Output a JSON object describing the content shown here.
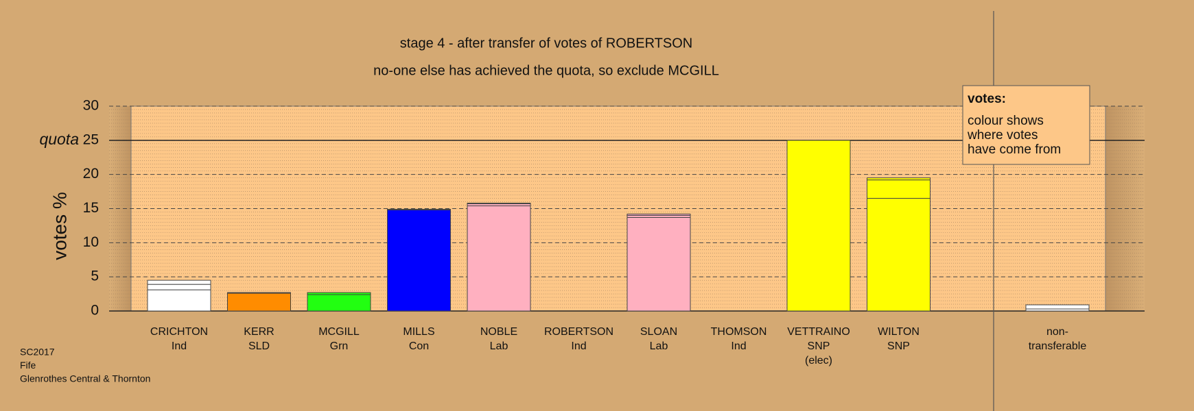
{
  "chart_data": {
    "type": "stacked_bar",
    "title": "stage 4 - after transfer of votes of ROBERTSON",
    "subtitle": "no-one else has achieved the quota, so exclude MCGILL",
    "ylabel": "votes %",
    "ylim": [
      0,
      30
    ],
    "yticks": [
      0,
      5,
      10,
      15,
      20,
      25,
      30
    ],
    "grid": true,
    "quota": {
      "value": 25,
      "label": "quota"
    },
    "bars": [
      {
        "label": [
          "CRICHTON",
          "Ind"
        ],
        "segments": [
          3.1,
          0.8,
          0.6
        ],
        "colors": [
          "#ffffff",
          "#ffffff",
          "#ffffff"
        ]
      },
      {
        "label": [
          "KERR",
          "SLD"
        ],
        "segments": [
          2.6,
          0.1
        ],
        "colors": [
          "#ff8c00",
          "#ff8c00"
        ]
      },
      {
        "label": [
          "MCGILL",
          "Grn"
        ],
        "segments": [
          2.4,
          0.3
        ],
        "colors": [
          "#22ff11",
          "#22ff11"
        ]
      },
      {
        "label": [
          "MILLS",
          "Con"
        ],
        "segments": [
          14.8,
          0.1
        ],
        "colors": [
          "#0000ff",
          "#0000ff"
        ]
      },
      {
        "label": [
          "NOBLE",
          "Lab"
        ],
        "segments": [
          15.4,
          0.3,
          0.1
        ],
        "colors": [
          "#ffb0c0",
          "#ffb0c0",
          "#ffb0c0"
        ]
      },
      {
        "label": [
          "ROBERTSON",
          "Ind"
        ],
        "segments": [
          0
        ],
        "colors": [
          "#ffffff"
        ]
      },
      {
        "label": [
          "SLOAN",
          "Lab"
        ],
        "segments": [
          13.7,
          0.3,
          0.2
        ],
        "colors": [
          "#ffb0c0",
          "#ffb0c0",
          "#ffb0c0"
        ]
      },
      {
        "label": [
          "THOMSON",
          "Ind"
        ],
        "segments": [
          0
        ],
        "colors": [
          "#ffffff"
        ]
      },
      {
        "label": [
          "VETTRAINO",
          "SNP",
          "(elec)"
        ],
        "segments": [
          25
        ],
        "colors": [
          "#ffff00"
        ]
      },
      {
        "label": [
          "WILTON",
          "SNP"
        ],
        "segments": [
          16.5,
          2.7,
          0.3
        ],
        "colors": [
          "#ffff00",
          "#ffff00",
          "#ffff00"
        ]
      }
    ],
    "nontransferable": {
      "label": [
        "non-",
        "transferable"
      ],
      "segments": [
        0.3,
        0.6
      ],
      "colors": [
        "#ffffff",
        "#ffffff"
      ]
    },
    "legend_title": "votes:",
    "legend_text": [
      "colour shows",
      "where votes",
      "have come from"
    ],
    "footer": [
      "SC2017",
      "Fife",
      "Glenrothes Central & Thornton"
    ]
  }
}
